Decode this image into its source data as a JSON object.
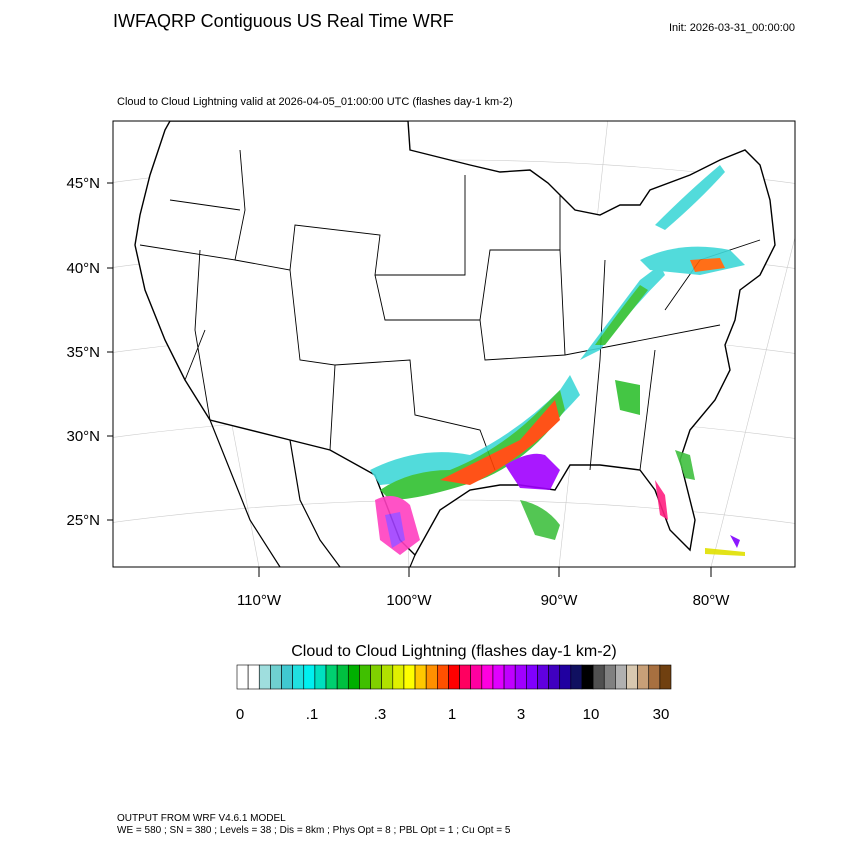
{
  "header": {
    "title": "IWFAQRP Contiguous US Real Time WRF",
    "init": "Init: 2026-03-31_00:00:00"
  },
  "map": {
    "subtitle": "Cloud to Cloud Lightning valid at 2026-04-05_01:00:00 UTC   (flashes day-1 km-2)",
    "lat_labels": [
      "45°N",
      "40°N",
      "35°N",
      "30°N",
      "25°N"
    ],
    "lon_labels": [
      "110°W",
      "100°W",
      "90°W",
      "80°W"
    ]
  },
  "colorbar": {
    "title": "Cloud to Cloud Lightning  (flashes day-1 km-2)",
    "labels": [
      "0",
      ".1",
      ".3",
      "1",
      "3",
      "10",
      "30"
    ],
    "colors": [
      "#ffffff",
      "#ffffff",
      "#9fdede",
      "#6fd0d0",
      "#40c8d0",
      "#20e0e0",
      "#00f0f0",
      "#00e0c0",
      "#00d070",
      "#00c040",
      "#00b000",
      "#40c000",
      "#80d000",
      "#b0e000",
      "#e0f000",
      "#ffff00",
      "#ffc800",
      "#ff9000",
      "#ff5000",
      "#ff0000",
      "#ff0060",
      "#ff00a0",
      "#ff00e0",
      "#e000ff",
      "#c000ff",
      "#a000ff",
      "#8000ff",
      "#6000e0",
      "#4000c0",
      "#2000a0",
      "#101060",
      "#000000",
      "#505050",
      "#808080",
      "#b0b0b0",
      "#d8c8b0",
      "#c8a078",
      "#a87040",
      "#704010"
    ]
  },
  "footer": {
    "lines": [
      "OUTPUT FROM WRF V4.6.1 MODEL",
      "WE = 580 ; SN = 380 ; Levels = 38 ; Dis = 8km ; Phys Opt = 8 ; PBL Opt = 1 ; Cu Opt = 5"
    ]
  }
}
